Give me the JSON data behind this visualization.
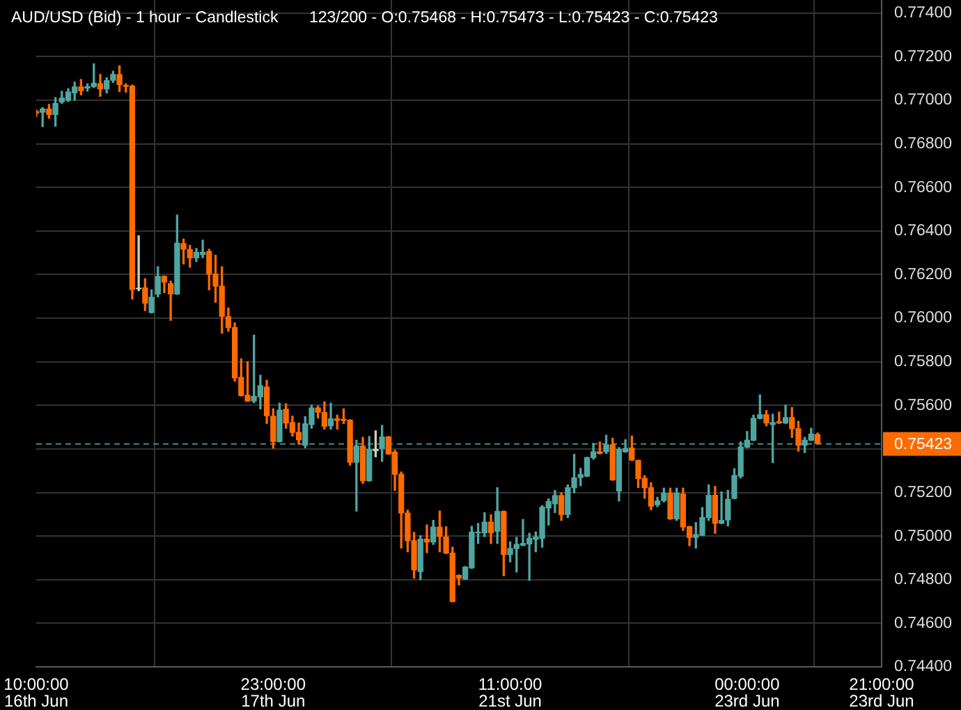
{
  "chart_data": {
    "type": "candlestick",
    "title": "AUD/USD (Bid) - 1 hour - Candlestick",
    "subtitle": "123/200 - O:0.75468 - H:0.75473 - L:0.75423 - C:0.75423",
    "categories": [
      "10:00:00\n16th Jun",
      null,
      null,
      null,
      null,
      null,
      null,
      null,
      null,
      null,
      null,
      null,
      null,
      null,
      null,
      null,
      null,
      null,
      null,
      null,
      null,
      null,
      null,
      null,
      null,
      null,
      null,
      null,
      null,
      null,
      null,
      null,
      null,
      null,
      null,
      null,
      null,
      "23:00:00\n17th Jun",
      null,
      null,
      null,
      null,
      null,
      null,
      null,
      null,
      null,
      null,
      null,
      null,
      null,
      null,
      null,
      null,
      null,
      null,
      null,
      null,
      null,
      null,
      null,
      null,
      null,
      null,
      null,
      null,
      null,
      null,
      null,
      null,
      null,
      null,
      null,
      null,
      "11:00:00\n21st Jun",
      null,
      null,
      null,
      null,
      null,
      null,
      null,
      null,
      null,
      null,
      null,
      null,
      null,
      null,
      null,
      null,
      null,
      null,
      null,
      null,
      null,
      null,
      null,
      null,
      null,
      null,
      null,
      null,
      null,
      null,
      null,
      null,
      null,
      null,
      null,
      null,
      "00:00:00\n23rd Jun",
      null,
      null,
      null,
      null,
      null,
      null,
      null,
      null,
      null,
      null,
      null,
      null,
      null,
      null,
      null,
      null,
      null,
      null,
      null,
      null,
      "21:00:00\n23rd Jun"
    ],
    "ohlc": [
      [
        0.76951,
        0.76956,
        0.76926,
        0.76939
      ],
      [
        0.76943,
        0.76966,
        0.76879,
        0.76962
      ],
      [
        0.76962,
        0.76981,
        0.76917,
        0.76932
      ],
      [
        0.76932,
        0.77012,
        0.76881,
        0.76987
      ],
      [
        0.7699,
        0.77041,
        0.76986,
        0.77012
      ],
      [
        0.76998,
        0.77053,
        0.76994,
        0.7704
      ],
      [
        0.77032,
        0.77083,
        0.77,
        0.77063
      ],
      [
        0.77063,
        0.77095,
        0.77025,
        0.77042
      ],
      [
        0.77054,
        0.77075,
        0.77042,
        0.77064
      ],
      [
        0.77061,
        0.77167,
        0.77059,
        0.7708
      ],
      [
        0.77078,
        0.77118,
        0.77018,
        0.7705
      ],
      [
        0.7705,
        0.77103,
        0.77033,
        0.77092
      ],
      [
        0.7709,
        0.77133,
        0.77082,
        0.7712
      ],
      [
        0.7712,
        0.77158,
        0.7704,
        0.7707
      ],
      [
        0.7707,
        0.77075,
        0.77037,
        0.77062
      ],
      [
        0.77067,
        0.7707,
        0.76088,
        0.7613
      ],
      [
        0.76133,
        0.76378,
        0.76126,
        0.76137
      ],
      [
        0.76141,
        0.76181,
        0.76035,
        0.76067
      ],
      [
        0.76024,
        0.7613,
        0.76024,
        0.76098
      ],
      [
        0.76109,
        0.76236,
        0.76098,
        0.76194
      ],
      [
        0.76194,
        0.76194,
        0.76117,
        0.76164
      ],
      [
        0.7616,
        0.7617,
        0.7599,
        0.76109
      ],
      [
        0.76109,
        0.76473,
        0.76109,
        0.76346
      ],
      [
        0.76344,
        0.76363,
        0.76249,
        0.76315
      ],
      [
        0.76317,
        0.76334,
        0.76234,
        0.76275
      ],
      [
        0.76275,
        0.7632,
        0.7626,
        0.76304
      ],
      [
        0.76291,
        0.76358,
        0.76278,
        0.76304
      ],
      [
        0.76308,
        0.76316,
        0.7613,
        0.762
      ],
      [
        0.76204,
        0.76289,
        0.76073,
        0.76145
      ],
      [
        0.76149,
        0.76236,
        0.75931,
        0.76007
      ],
      [
        0.76009,
        0.76047,
        0.7594,
        0.75955
      ],
      [
        0.75959,
        0.75978,
        0.75711,
        0.75724
      ],
      [
        0.7573,
        0.75813,
        0.75643,
        0.75643
      ],
      [
        0.75648,
        0.758,
        0.75618,
        0.75618
      ],
      [
        0.75618,
        0.75922,
        0.75612,
        0.75643
      ],
      [
        0.75637,
        0.75738,
        0.75584,
        0.75692
      ],
      [
        0.75686,
        0.75715,
        0.75517,
        0.7555
      ],
      [
        0.75552,
        0.75584,
        0.75404,
        0.75432
      ],
      [
        0.75432,
        0.7561,
        0.75432,
        0.7558
      ],
      [
        0.75584,
        0.75607,
        0.75495,
        0.75517
      ],
      [
        0.75523,
        0.7555,
        0.75459,
        0.75474
      ],
      [
        0.75478,
        0.75519,
        0.75421,
        0.7544
      ],
      [
        0.75415,
        0.75548,
        0.75406,
        0.75517
      ],
      [
        0.7551,
        0.75601,
        0.75495,
        0.7559
      ],
      [
        0.7559,
        0.75597,
        0.75542,
        0.75567
      ],
      [
        0.75569,
        0.75616,
        0.75491,
        0.75502
      ],
      [
        0.75504,
        0.7561,
        0.75491,
        0.7554
      ],
      [
        0.7554,
        0.75555,
        0.75491,
        0.75529
      ],
      [
        0.75538,
        0.75584,
        0.75517,
        0.75529
      ],
      [
        0.75534,
        0.75534,
        0.75326,
        0.75337
      ],
      [
        0.75337,
        0.7544,
        0.75115,
        0.75415
      ],
      [
        0.75415,
        0.75453,
        0.75242,
        0.75252
      ],
      [
        0.75252,
        0.75457,
        0.75252,
        0.754
      ],
      [
        0.754,
        0.75483,
        0.75364,
        0.7539
      ],
      [
        0.754,
        0.75508,
        0.75343,
        0.75457
      ],
      [
        0.75457,
        0.75457,
        0.75375,
        0.75375
      ],
      [
        0.75387,
        0.75394,
        0.7521,
        0.75282
      ],
      [
        0.75286,
        0.75294,
        0.74945,
        0.75104
      ],
      [
        0.75108,
        0.75119,
        0.74928,
        0.74977
      ],
      [
        0.74981,
        0.75017,
        0.74807,
        0.74843
      ],
      [
        0.74835,
        0.75002,
        0.74801,
        0.74988
      ],
      [
        0.74988,
        0.75051,
        0.74924,
        0.74971
      ],
      [
        0.74971,
        0.75072,
        0.74962,
        0.75043
      ],
      [
        0.75043,
        0.75115,
        0.74928,
        0.74996
      ],
      [
        0.74998,
        0.75043,
        0.7492,
        0.7492
      ],
      [
        0.74924,
        0.74949,
        0.74698,
        0.74698
      ],
      [
        0.74822,
        0.74822,
        0.74776,
        0.74805
      ],
      [
        0.74801,
        0.7486,
        0.74801,
        0.7486
      ],
      [
        0.74852,
        0.75045,
        0.74852,
        0.7502
      ],
      [
        0.75013,
        0.75058,
        0.74966,
        0.7502
      ],
      [
        0.75013,
        0.75107,
        0.74998,
        0.75066
      ],
      [
        0.75066,
        0.75098,
        0.74966,
        0.75013
      ],
      [
        0.7502,
        0.75222,
        0.74966,
        0.75115
      ],
      [
        0.75115,
        0.75115,
        0.74818,
        0.74913
      ],
      [
        0.74913,
        0.74973,
        0.74882,
        0.74945
      ],
      [
        0.74941,
        0.74994,
        0.74835,
        0.74964
      ],
      [
        0.74956,
        0.75076,
        0.74956,
        0.74968
      ],
      [
        0.74962,
        0.75013,
        0.74797,
        0.74992
      ],
      [
        0.74983,
        0.75019,
        0.74928,
        0.74998
      ],
      [
        0.74987,
        0.7514,
        0.74949,
        0.75135
      ],
      [
        0.75127,
        0.75171,
        0.75051,
        0.75161
      ],
      [
        0.75146,
        0.75209,
        0.75108,
        0.75188
      ],
      [
        0.75188,
        0.75199,
        0.75072,
        0.75097
      ],
      [
        0.75097,
        0.75235,
        0.75085,
        0.75224
      ],
      [
        0.7522,
        0.75375,
        0.75199,
        0.75269
      ],
      [
        0.75267,
        0.75311,
        0.75231,
        0.75284
      ],
      [
        0.75273,
        0.75362,
        0.75273,
        0.75362
      ],
      [
        0.75358,
        0.75425,
        0.75353,
        0.75389
      ],
      [
        0.75389,
        0.75432,
        0.75377,
        0.75377
      ],
      [
        0.75385,
        0.75463,
        0.75379,
        0.75421
      ],
      [
        0.75421,
        0.75449,
        0.75256,
        0.75256
      ],
      [
        0.75205,
        0.75406,
        0.75161,
        0.754
      ],
      [
        0.75385,
        0.75442,
        0.75385,
        0.75404
      ],
      [
        0.75406,
        0.75459,
        0.75347,
        0.75347
      ],
      [
        0.75349,
        0.75349,
        0.75223,
        0.75262
      ],
      [
        0.75267,
        0.75277,
        0.75174,
        0.7522
      ],
      [
        0.75224,
        0.75245,
        0.75121,
        0.75135
      ],
      [
        0.75142,
        0.75178,
        0.75135,
        0.75163
      ],
      [
        0.75161,
        0.7522,
        0.75157,
        0.75199
      ],
      [
        0.75199,
        0.7522,
        0.75077,
        0.75077
      ],
      [
        0.75077,
        0.7522,
        0.75072,
        0.75199
      ],
      [
        0.75195,
        0.7522,
        0.75026,
        0.7504
      ],
      [
        0.75045,
        0.75045,
        0.74956,
        0.74992
      ],
      [
        0.74992,
        0.75062,
        0.74945,
        0.75009
      ],
      [
        0.75002,
        0.75131,
        0.75002,
        0.75087
      ],
      [
        0.75083,
        0.75235,
        0.75072,
        0.75189
      ],
      [
        0.75189,
        0.75228,
        0.75013,
        0.75057
      ],
      [
        0.75057,
        0.75203,
        0.75057,
        0.75074
      ],
      [
        0.75072,
        0.7521,
        0.75047,
        0.75171
      ],
      [
        0.75171,
        0.75309,
        0.75171,
        0.7528
      ],
      [
        0.75273,
        0.75432,
        0.75267,
        0.75411
      ],
      [
        0.75406,
        0.7548,
        0.75406,
        0.75442
      ],
      [
        0.75438,
        0.75555,
        0.75438,
        0.75542
      ],
      [
        0.75538,
        0.75648,
        0.75538,
        0.75559
      ],
      [
        0.75559,
        0.75576,
        0.75506,
        0.75517
      ],
      [
        0.7551,
        0.75559,
        0.75337,
        0.75523
      ],
      [
        0.75527,
        0.75569,
        0.75517,
        0.75517
      ],
      [
        0.75517,
        0.75601,
        0.75517,
        0.75546
      ],
      [
        0.75546,
        0.7559,
        0.75453,
        0.75491
      ],
      [
        0.75495,
        0.75527,
        0.7539,
        0.75415
      ],
      [
        0.75415,
        0.75453,
        0.75383,
        0.75442
      ],
      [
        0.75438,
        0.75495,
        0.75438,
        0.7547
      ],
      [
        0.75468,
        0.75473,
        0.75423,
        0.75423
      ],
      null,
      null,
      null,
      null,
      null,
      null,
      null,
      null,
      null,
      null
    ],
    "colors": [
      "#ff6a00",
      "#4fa6a1",
      "#ff6a00",
      "#4fa6a1",
      "#4fa6a1",
      "#4fa6a1",
      "#4fa6a1",
      "#ff6a00",
      "#4fa6a1",
      "#4fa6a1",
      "#ff6a00",
      "#4fa6a1",
      "#4fa6a1",
      "#ff6a00",
      "#ff6a00",
      "#ff6a00",
      "#c8d2c0",
      "#ff6a00",
      "#4fa6a1",
      "#4fa6a1",
      "#ff6a00",
      "#ff6a00",
      "#4fa6a1",
      "#ff6a00",
      "#ff6a00",
      "#4fa6a1",
      "#4fa6a1",
      "#ff6a00",
      "#ff6a00",
      "#ff6a00",
      "#ff6a00",
      "#ff6a00",
      "#ff6a00",
      "#ff6a00",
      "#4fa6a1",
      "#4fa6a1",
      "#ff6a00",
      "#ff6a00",
      "#4fa6a1",
      "#ff6a00",
      "#ff6a00",
      "#ff6a00",
      "#4fa6a1",
      "#4fa6a1",
      "#ff6a00",
      "#ff6a00",
      "#4fa6a1",
      "#ff6a00",
      "#ff6a00",
      "#ff6a00",
      "#4fa6a1",
      "#ff6a00",
      "#4fa6a1",
      "#c8d2c0",
      "#4fa6a1",
      "#ff6a00",
      "#ff6a00",
      "#ff6a00",
      "#ff6a00",
      "#ff6a00",
      "#4fa6a1",
      "#ff6a00",
      "#4fa6a1",
      "#ff6a00",
      "#ff6a00",
      "#ff6a00",
      "#ff6a00",
      "#4fa6a1",
      "#4fa6a1",
      "#4fa6a1",
      "#4fa6a1",
      "#ff6a00",
      "#4fa6a1",
      "#ff6a00",
      "#4fa6a1",
      "#4fa6a1",
      "#4fa6a1",
      "#4fa6a1",
      "#4fa6a1",
      "#4fa6a1",
      "#4fa6a1",
      "#4fa6a1",
      "#ff6a00",
      "#4fa6a1",
      "#4fa6a1",
      "#4fa6a1",
      "#4fa6a1",
      "#4fa6a1",
      "#ff6a00",
      "#4fa6a1",
      "#ff6a00",
      "#4fa6a1",
      "#4fa6a1",
      "#ff6a00",
      "#ff6a00",
      "#ff6a00",
      "#ff6a00",
      "#4fa6a1",
      "#4fa6a1",
      "#ff6a00",
      "#4fa6a1",
      "#ff6a00",
      "#ff6a00",
      "#4fa6a1",
      "#4fa6a1",
      "#4fa6a1",
      "#ff6a00",
      "#4fa6a1",
      "#4fa6a1",
      "#4fa6a1",
      "#4fa6a1",
      "#4fa6a1",
      "#4fa6a1",
      "#4fa6a1",
      "#ff6a00",
      "#4fa6a1",
      "#ff6a00",
      "#4fa6a1",
      "#ff6a00",
      "#ff6a00",
      "#4fa6a1",
      "#4fa6a1",
      "#ff6a00",
      null,
      null,
      null,
      null,
      null,
      null,
      null,
      null,
      null,
      null
    ],
    "ylim": [
      0.744,
      0.7746
    ],
    "yticks": [
      {
        "value": 0.744,
        "label": "0.74400"
      },
      {
        "value": 0.746,
        "label": "0.74600"
      },
      {
        "value": 0.748,
        "label": "0.74800"
      },
      {
        "value": 0.75,
        "label": "0.75000"
      },
      {
        "value": 0.752,
        "label": "0.75200"
      },
      {
        "value": 0.754,
        "label": null
      },
      {
        "value": 0.756,
        "label": "0.75600"
      },
      {
        "value": 0.758,
        "label": "0.75800"
      },
      {
        "value": 0.76,
        "label": "0.76000"
      },
      {
        "value": 0.762,
        "label": "0.76200"
      },
      {
        "value": 0.764,
        "label": "0.76400"
      },
      {
        "value": 0.766,
        "label": "0.76600"
      },
      {
        "value": 0.768,
        "label": "0.76800"
      },
      {
        "value": 0.77,
        "label": "0.77000"
      },
      {
        "value": 0.772,
        "label": "0.77200"
      },
      {
        "value": 0.774,
        "label": "0.77400"
      }
    ],
    "grid": true,
    "ref_lines": [
      {
        "axis": "y",
        "value": 0.75423,
        "label": "0.75423",
        "color": "#3f8f8c",
        "line_style": "dashed"
      }
    ]
  }
}
